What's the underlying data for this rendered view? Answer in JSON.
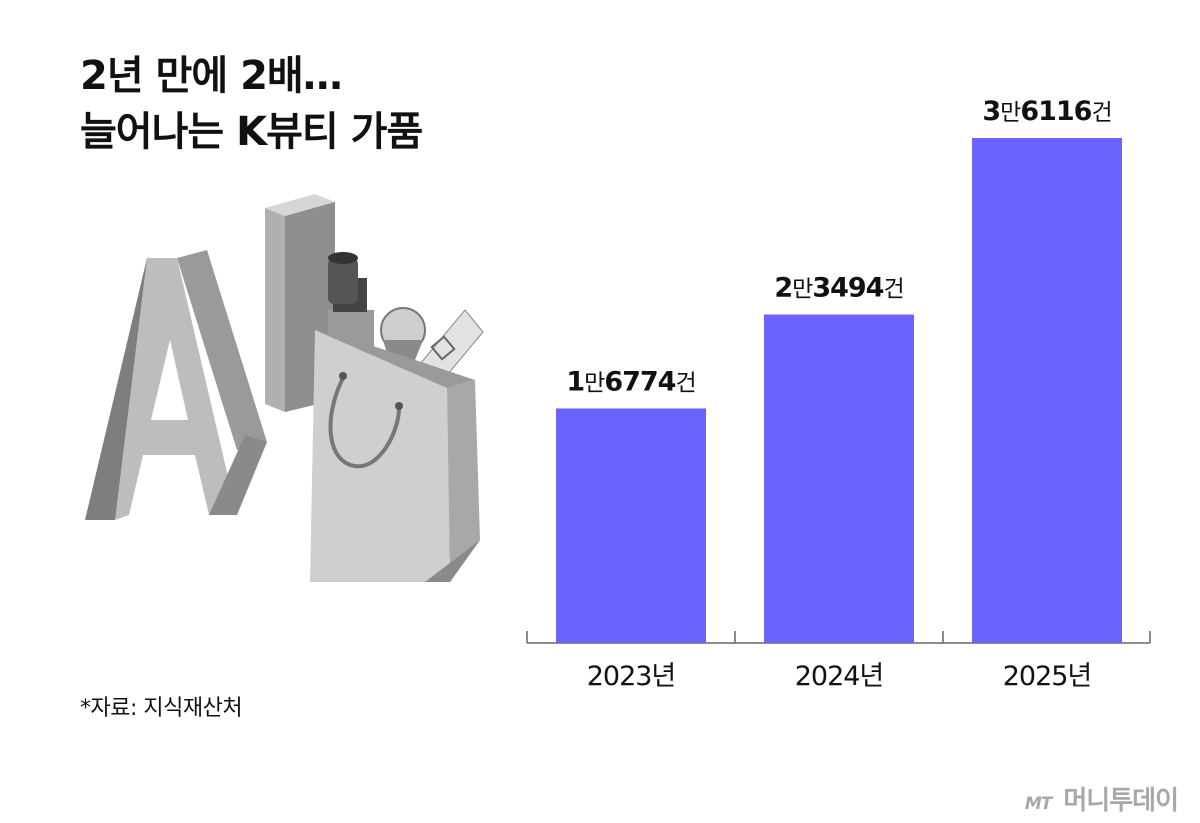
{
  "title": {
    "line1": "2년 만에 2배…",
    "line2": "늘어나는 K뷰티 가품"
  },
  "illustration": {
    "letters": "AI",
    "icon": "shopping-bag-with-cosmetics-icon"
  },
  "chart_data": {
    "type": "bar",
    "categories": [
      "2023년",
      "2024년",
      "2025년"
    ],
    "values": [
      16774,
      23494,
      36116
    ],
    "data_labels": [
      {
        "man": "1",
        "man_unit": "만",
        "rest": "6774",
        "unit": "건"
      },
      {
        "man": "2",
        "man_unit": "만",
        "rest": "3494",
        "unit": "건"
      },
      {
        "man": "3",
        "man_unit": "만",
        "rest": "6116",
        "unit": "건"
      }
    ],
    "ylim": [
      0,
      36116
    ],
    "bar_color": "#6b63ff",
    "grid": false,
    "title": "",
    "xlabel": "",
    "ylabel": ""
  },
  "source": "*자료: 지식재산처",
  "logo": {
    "mark": "MT",
    "name": "머니투데이"
  }
}
